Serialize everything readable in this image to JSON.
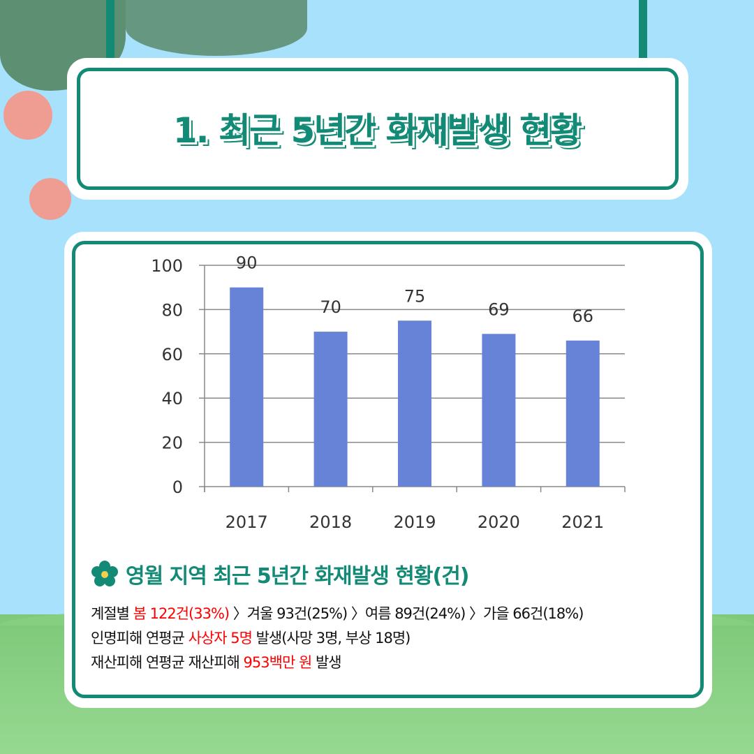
{
  "title": "1. 최근 5년간 화재발생 현황",
  "subtitle": "영월 지역 최근 5년간 화재발생 현황(건)",
  "colors": {
    "accent": "#128a76",
    "bar": "#6683d8",
    "highlight": "#ff0000",
    "sky": "#a8e1fc"
  },
  "chart_data": {
    "type": "bar",
    "categories": [
      "2017",
      "2018",
      "2019",
      "2020",
      "2021"
    ],
    "values": [
      90,
      70,
      75,
      69,
      66
    ],
    "data_labels": [
      "90",
      "70",
      "75",
      "69",
      "66"
    ],
    "ylim": [
      0,
      100
    ],
    "yticks": [
      "0",
      "20",
      "40",
      "60",
      "80",
      "100"
    ],
    "grid": true,
    "legend": "none"
  },
  "summary": {
    "line1": {
      "prefix": "계절별 ",
      "highlight": "봄 122건(33%)",
      "suffix": " 〉겨울 93건(25%) 〉여름 89건(24%) 〉가을 66건(18%)"
    },
    "line2": {
      "prefix": "인명피해 연평균 ",
      "highlight": "사상자 5명",
      "suffix": " 발생(사망 3명, 부상 18명)"
    },
    "line3": {
      "prefix": "재산피해 연평균 재산피해 ",
      "highlight": "953백만 원",
      "suffix": " 발생"
    }
  },
  "icons": {
    "subhead": "flower-icon"
  }
}
